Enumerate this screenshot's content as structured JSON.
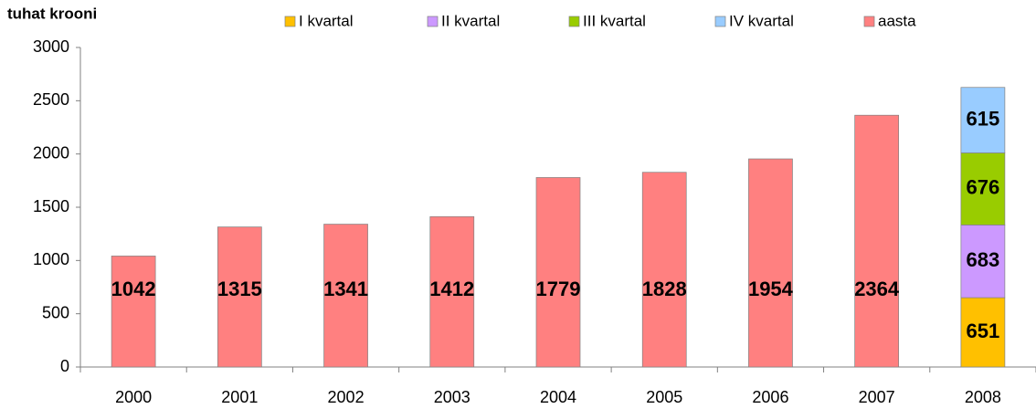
{
  "chart_data": {
    "type": "stacked_bar",
    "y_label": "tuhat krooni",
    "categories": [
      "2000",
      "2001",
      "2002",
      "2003",
      "2004",
      "2005",
      "2006",
      "2007",
      "2008"
    ],
    "series": [
      {
        "name": "I kvartal",
        "color": "#FFC000",
        "values": [
          null,
          null,
          null,
          null,
          null,
          null,
          null,
          null,
          651
        ]
      },
      {
        "name": "II kvartal",
        "color": "#CC99FF",
        "values": [
          null,
          null,
          null,
          null,
          null,
          null,
          null,
          null,
          683
        ]
      },
      {
        "name": "III kvartal",
        "color": "#99CC00",
        "values": [
          null,
          null,
          null,
          null,
          null,
          null,
          null,
          null,
          676
        ]
      },
      {
        "name": "IV kvartal",
        "color": "#99CCFF",
        "values": [
          null,
          null,
          null,
          null,
          null,
          null,
          null,
          null,
          615
        ]
      },
      {
        "name": "aasta",
        "color": "#FF8080",
        "values": [
          1042,
          1315,
          1341,
          1412,
          1779,
          1828,
          1954,
          2364,
          null
        ]
      }
    ],
    "ylim": [
      0,
      3000
    ],
    "yticks": [
      0,
      500,
      1000,
      1500,
      2000,
      2500,
      3000
    ],
    "grid": false
  }
}
